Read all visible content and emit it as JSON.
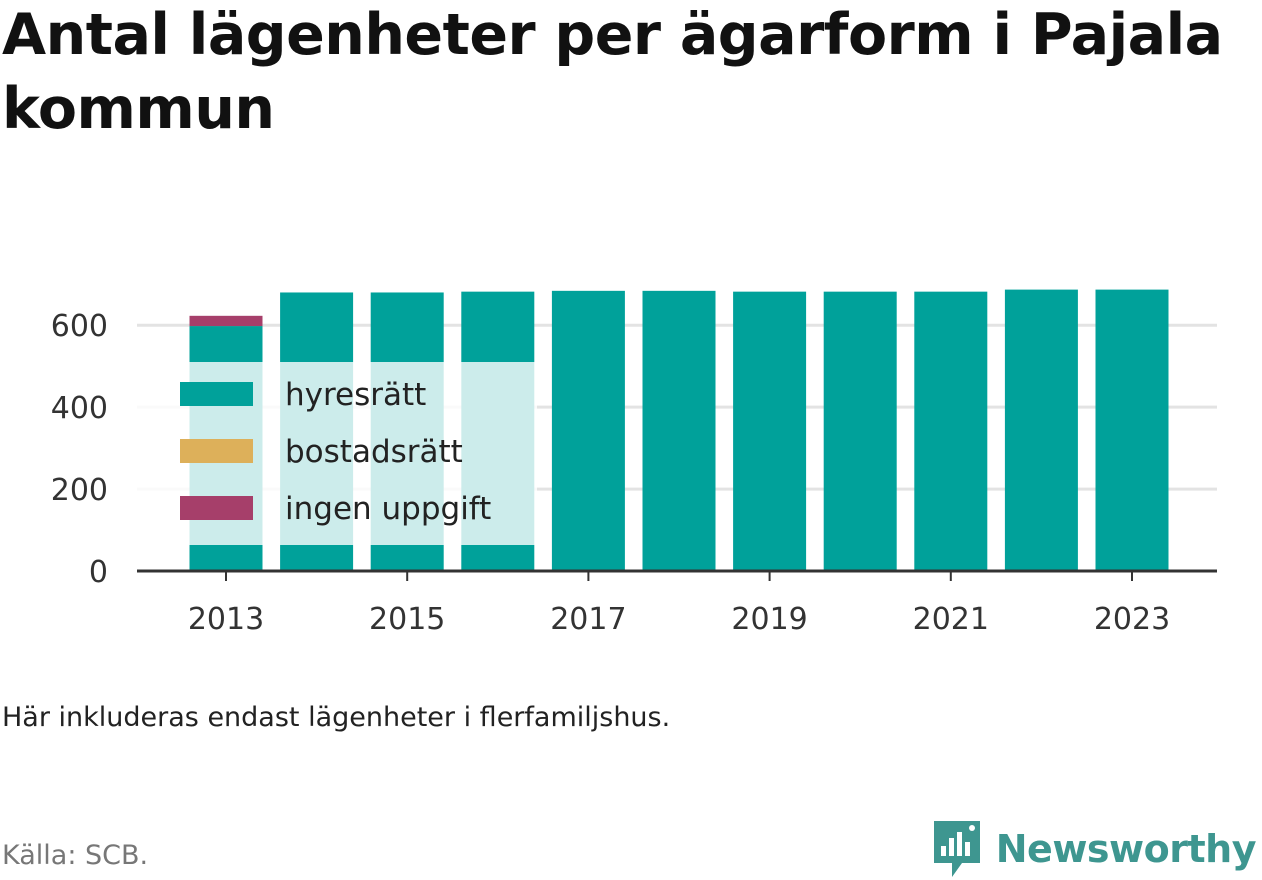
{
  "title": "Antal lägenheter per ägarform i Pajala kommun",
  "note": "Här inkluderas endast lägenheter i flerfamiljshus.",
  "source": "Källa: SCB.",
  "brand": {
    "name": "Newsworthy",
    "icon": "newsworthy-logo-icon",
    "color": "#3e9690"
  },
  "colors": {
    "hyresratt": "#00a19a",
    "bostadsratt": "#ddb05a",
    "ingen_uppgift": "#a63f6a"
  },
  "chart_data": {
    "type": "bar",
    "stacked": true,
    "categories": [
      "2013",
      "2014",
      "2015",
      "2016",
      "2017",
      "2018",
      "2019",
      "2020",
      "2021",
      "2022",
      "2023"
    ],
    "x_tick_labels": [
      "2013",
      "2015",
      "2017",
      "2019",
      "2021",
      "2023"
    ],
    "series": [
      {
        "name": "hyresrätt",
        "color": "#00a19a",
        "values": [
          598,
          680,
          680,
          682,
          684,
          684,
          682,
          682,
          682,
          687,
          687
        ]
      },
      {
        "name": "bostadsrätt",
        "color": "#ddb05a",
        "values": [
          0,
          0,
          0,
          0,
          0,
          0,
          0,
          0,
          0,
          0,
          0
        ]
      },
      {
        "name": "ingen uppgift",
        "color": "#a63f6a",
        "values": [
          25,
          0,
          0,
          0,
          0,
          0,
          0,
          0,
          0,
          0,
          0
        ]
      }
    ],
    "y_ticks": [
      0,
      200,
      400,
      600
    ],
    "ylim": [
      0,
      700
    ],
    "grid": true,
    "legend_position": "inside-left"
  }
}
